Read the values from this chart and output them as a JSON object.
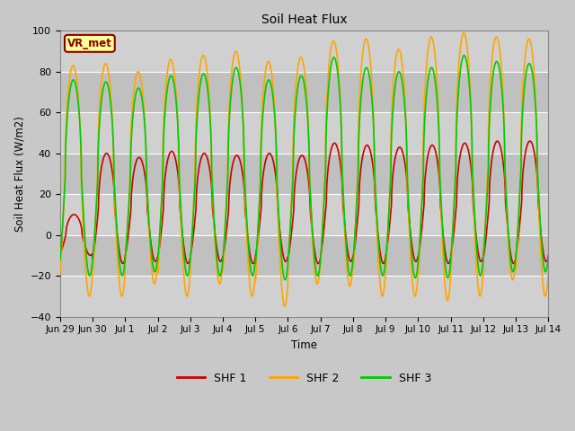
{
  "title": "Soil Heat Flux",
  "ylabel": "Soil Heat Flux (W/m2)",
  "xlabel": "Time",
  "ylim": [
    -40,
    100
  ],
  "yticks": [
    -40,
    -20,
    0,
    20,
    40,
    60,
    80,
    100
  ],
  "fig_bg_color": "#c8c8c8",
  "plot_bg_color": "#c8c8c8",
  "band_colors": [
    "#d0d0d0",
    "#c0c0c0"
  ],
  "shf1_color": "#cc0000",
  "shf2_color": "#ffa500",
  "shf3_color": "#00cc00",
  "line_width": 1.2,
  "annotation_text": "VR_met",
  "annotation_color": "#8b0000",
  "annotation_bg": "#ffff99",
  "annotation_border": "#8b0000",
  "num_days": 15,
  "points_per_day": 144,
  "tick_labels": [
    "Jun 29",
    "Jun 30",
    "Jul 1",
    "Jul 2",
    "Jul 3",
    "Jul 4",
    "Jul 5",
    "Jul 6",
    "Jul 7",
    "Jul 8",
    "Jul 9",
    "Jul 10",
    "Jul 11",
    "Jul 12",
    "Jul 13",
    "Jul 14"
  ],
  "legend_labels": [
    "SHF 1",
    "SHF 2",
    "SHF 3"
  ]
}
